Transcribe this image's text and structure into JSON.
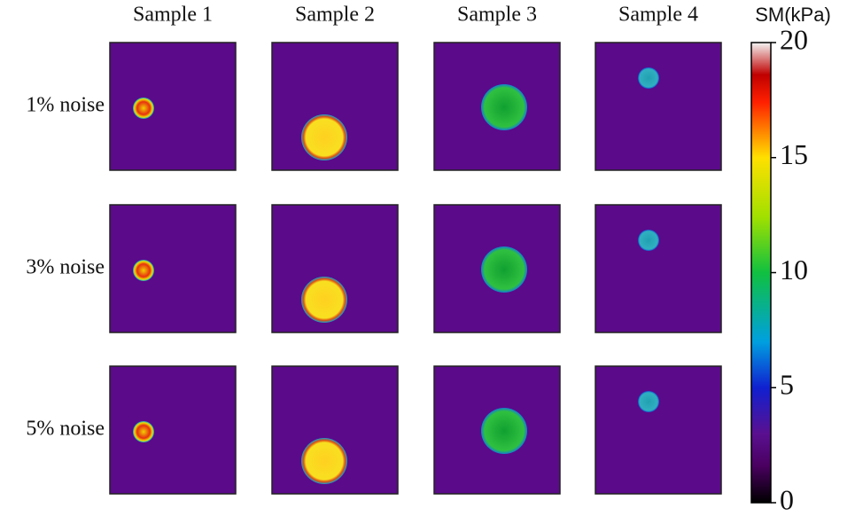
{
  "chart_data": {
    "type": "image-grid",
    "columns": [
      "Sample 1",
      "Sample 2",
      "Sample 3",
      "Sample 4"
    ],
    "rows": [
      "1% noise",
      "3% noise",
      "5% noise"
    ],
    "colorbar": {
      "label": "SM(kPa)",
      "lim": [
        0,
        20
      ],
      "ticks": [
        0,
        5,
        10,
        15,
        20
      ]
    }
  }
}
